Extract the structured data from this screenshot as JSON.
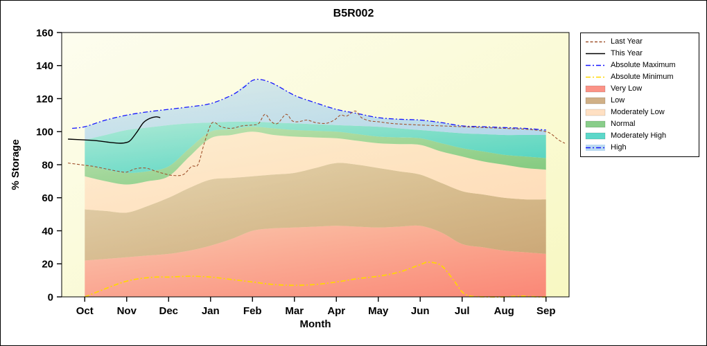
{
  "title": "B5R002",
  "axes": {
    "x_label": "Month",
    "y_label": "% Storage",
    "y_ticks": [
      0,
      20,
      40,
      60,
      80,
      100,
      120,
      140,
      160
    ],
    "x_tick_labels": [
      "Oct",
      "Nov",
      "Dec",
      "Jan",
      "Feb",
      "Mar",
      "Apr",
      "May",
      "Jun",
      "Jul",
      "Aug",
      "Sep"
    ],
    "ylim": [
      0,
      160
    ]
  },
  "colors": {
    "plot_bg_light": "#fdfdef",
    "plot_bg_deep": "#f8f8c2",
    "axis": "#000000"
  },
  "legend": {
    "items": [
      {
        "label": "Last Year",
        "swatch": "line",
        "color": "#A0522D",
        "dash": "4 2.5"
      },
      {
        "label": "This Year",
        "swatch": "line",
        "color": "#000000",
        "dash": ""
      },
      {
        "label": "Absolute Maximum",
        "swatch": "line",
        "color": "#1414FF",
        "dash": "7 3 2 3"
      },
      {
        "label": "Absolute Minimum",
        "swatch": "line",
        "color": "#FFD700",
        "dash": "7 3 2 3"
      },
      {
        "label": "Very Low",
        "swatch": "fill",
        "color": "#FA8072"
      },
      {
        "label": "Low",
        "swatch": "fill",
        "color": "#C8A272"
      },
      {
        "label": "Moderately Low",
        "swatch": "fill",
        "color": "#FFDAB9"
      },
      {
        "label": "Normal",
        "swatch": "fill",
        "color": "#74C476"
      },
      {
        "label": "Moderately High",
        "swatch": "fill",
        "color": "#40D0C0"
      },
      {
        "label": "High",
        "swatch": "line-fill",
        "color": "#1414FF",
        "fill": "#AED4EE",
        "dash": "7 3 2 3"
      }
    ]
  },
  "chart_data": {
    "type": "area",
    "title": "B5R002",
    "xlabel": "Month",
    "ylabel": "% Storage",
    "x_unit": "month index, 0=Oct ... 11=Sep",
    "ylim": [
      0,
      160
    ],
    "x_grid": [
      0,
      0.5,
      1,
      1.5,
      2,
      2.5,
      3,
      3.5,
      4,
      4.5,
      5,
      5.5,
      6,
      6.5,
      7,
      7.5,
      8,
      8.5,
      9,
      9.5,
      10,
      10.5,
      11
    ],
    "bands": [
      {
        "name": "Very Low",
        "color": "#FA8072",
        "top": [
          22,
          23,
          24,
          25,
          26,
          28,
          31,
          35,
          40,
          41.5,
          42,
          42.5,
          43,
          42.5,
          42,
          42.5,
          43,
          39,
          32,
          30,
          28,
          27,
          26
        ]
      },
      {
        "name": "Low",
        "color": "#C8A272",
        "top": [
          53,
          52,
          51,
          55,
          60,
          66,
          71,
          72,
          73,
          74,
          75,
          78,
          81,
          80,
          78,
          76,
          74,
          69,
          64,
          62,
          60,
          59,
          59
        ]
      },
      {
        "name": "Moderately Low",
        "color": "#FFDAB9",
        "top": [
          73,
          70,
          68,
          70,
          73,
          85,
          96,
          98,
          100,
          98,
          97,
          96.5,
          96,
          94.5,
          93,
          92.5,
          92,
          88,
          85,
          82,
          80,
          78,
          77
        ]
      },
      {
        "name": "Normal",
        "color": "#74C476",
        "top": [
          80,
          77,
          75,
          76,
          79,
          90,
          100,
          101.5,
          103,
          102,
          101,
          100.5,
          100,
          98.5,
          97,
          96.5,
          96,
          93,
          90,
          88,
          86,
          85,
          84
        ]
      },
      {
        "name": "Moderately High",
        "color": "#40D0C0",
        "top": [
          95,
          98,
          101,
          102.5,
          104,
          105,
          105.5,
          106,
          106,
          105.5,
          105,
          104.5,
          104,
          103.5,
          103,
          102,
          101,
          100,
          99,
          98.5,
          98,
          98,
          98
        ]
      },
      {
        "name": "High",
        "color": "#AED4EE",
        "top": [
          103,
          107,
          110,
          112,
          113.5,
          115,
          117,
          122,
          131,
          129,
          122,
          117.5,
          113.5,
          111,
          108.5,
          107.5,
          107,
          105.5,
          103.5,
          103,
          102.5,
          102,
          101
        ]
      }
    ],
    "lines": [
      {
        "name": "Absolute Maximum",
        "color": "#1414FF",
        "dash": "7 3 2 3",
        "width": 1.3,
        "points": [
          [
            -0.3,
            102
          ],
          [
            0,
            103
          ],
          [
            0.5,
            107
          ],
          [
            1,
            110
          ],
          [
            1.5,
            112
          ],
          [
            2,
            113.5
          ],
          [
            2.5,
            115
          ],
          [
            3,
            117
          ],
          [
            3.5,
            122
          ],
          [
            3.8,
            127
          ],
          [
            4,
            131
          ],
          [
            4.2,
            131.5
          ],
          [
            4.5,
            129
          ],
          [
            5,
            122
          ],
          [
            5.5,
            117.5
          ],
          [
            6,
            113.5
          ],
          [
            6.5,
            111
          ],
          [
            7,
            108.5
          ],
          [
            7.5,
            107.5
          ],
          [
            8,
            107
          ],
          [
            8.5,
            105.5
          ],
          [
            9,
            103.5
          ],
          [
            9.5,
            103
          ],
          [
            10,
            102.5
          ],
          [
            10.5,
            102
          ],
          [
            11,
            101
          ]
        ]
      },
      {
        "name": "Absolute Minimum",
        "color": "#FFD700",
        "dash": "7 3 2 3",
        "width": 1.7,
        "points": [
          [
            0,
            0
          ],
          [
            0.3,
            3
          ],
          [
            0.7,
            7
          ],
          [
            1,
            9.5
          ],
          [
            1.3,
            11
          ],
          [
            1.7,
            12
          ],
          [
            2,
            12
          ],
          [
            2.5,
            12.5
          ],
          [
            3,
            12
          ],
          [
            3.5,
            10.5
          ],
          [
            4,
            9
          ],
          [
            4.5,
            7.5
          ],
          [
            5,
            7
          ],
          [
            5.5,
            7.5
          ],
          [
            6,
            9
          ],
          [
            6.5,
            11
          ],
          [
            7,
            12.5
          ],
          [
            7.5,
            15
          ],
          [
            8,
            19.5
          ],
          [
            8.2,
            21
          ],
          [
            8.5,
            19
          ],
          [
            8.8,
            10
          ],
          [
            9,
            3
          ],
          [
            9.2,
            0.5
          ],
          [
            9.6,
            0
          ],
          [
            10,
            0
          ],
          [
            10.4,
            0.5
          ],
          [
            10.8,
            0
          ],
          [
            11,
            0
          ]
        ]
      },
      {
        "name": "Last Year",
        "color": "#A0522D",
        "dash": "4 2.5",
        "width": 1.1,
        "points": [
          [
            -0.4,
            81
          ],
          [
            -0.1,
            80
          ],
          [
            0.2,
            79
          ],
          [
            0.5,
            77.5
          ],
          [
            0.8,
            76
          ],
          [
            1,
            75.5
          ],
          [
            1.2,
            77.5
          ],
          [
            1.45,
            78
          ],
          [
            1.7,
            76
          ],
          [
            1.9,
            74.5
          ],
          [
            2.1,
            73.5
          ],
          [
            2.35,
            74
          ],
          [
            2.55,
            79
          ],
          [
            2.7,
            80
          ],
          [
            2.85,
            93
          ],
          [
            3,
            104
          ],
          [
            3.1,
            105.5
          ],
          [
            3.25,
            103
          ],
          [
            3.5,
            102
          ],
          [
            3.75,
            103.5
          ],
          [
            4,
            104
          ],
          [
            4.15,
            105
          ],
          [
            4.3,
            110.5
          ],
          [
            4.45,
            106
          ],
          [
            4.6,
            105
          ],
          [
            4.8,
            110.5
          ],
          [
            4.95,
            106.5
          ],
          [
            5.1,
            106
          ],
          [
            5.3,
            107
          ],
          [
            5.5,
            105.5
          ],
          [
            5.75,
            105
          ],
          [
            5.95,
            107
          ],
          [
            6.1,
            110
          ],
          [
            6.25,
            109.5
          ],
          [
            6.45,
            112.5
          ],
          [
            6.6,
            108.5
          ],
          [
            6.8,
            106.5
          ],
          [
            7,
            106
          ],
          [
            7.3,
            105
          ],
          [
            7.6,
            104.5
          ],
          [
            8,
            104
          ],
          [
            8.5,
            103.5
          ],
          [
            9,
            103
          ],
          [
            9.5,
            102.5
          ],
          [
            10,
            102
          ],
          [
            10.5,
            101.5
          ],
          [
            10.9,
            100.5
          ],
          [
            11.1,
            99
          ],
          [
            11.3,
            95
          ],
          [
            11.45,
            93
          ]
        ]
      },
      {
        "name": "This Year",
        "color": "#000000",
        "dash": "",
        "width": 1.4,
        "points": [
          [
            -0.4,
            95.5
          ],
          [
            0,
            95
          ],
          [
            0.3,
            94.5
          ],
          [
            0.6,
            93.5
          ],
          [
            0.85,
            93
          ],
          [
            1,
            93.5
          ],
          [
            1.1,
            95
          ],
          [
            1.25,
            100
          ],
          [
            1.4,
            105.5
          ],
          [
            1.55,
            108
          ],
          [
            1.7,
            109
          ],
          [
            1.8,
            108.5
          ]
        ]
      }
    ]
  }
}
